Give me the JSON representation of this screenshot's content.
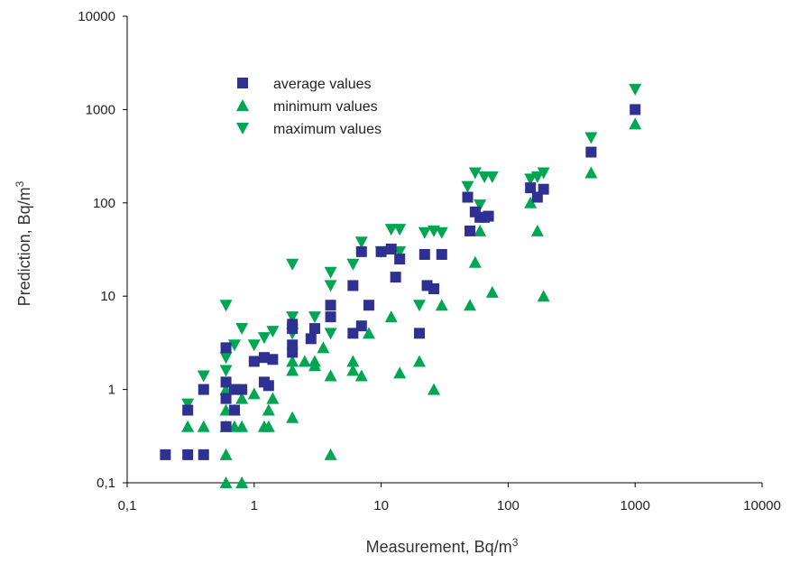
{
  "chart_data": {
    "type": "scatter",
    "title": "",
    "xlabel": "Measurement, Bq/m",
    "xlabel_sup": "3",
    "ylabel": "Prediction, Bq/m",
    "ylabel_sup": "3",
    "x_scale": "log",
    "y_scale": "log",
    "xlim": [
      0.1,
      10000
    ],
    "ylim": [
      0.1,
      10000
    ],
    "x_ticks": [
      "0,1",
      "1",
      "10",
      "100",
      "1000",
      "10000"
    ],
    "y_ticks": [
      "0,1",
      "1",
      "10",
      "100",
      "1000",
      "10000"
    ],
    "grid": false,
    "legend_position": "top-left",
    "series": [
      {
        "name": "average values",
        "marker": "square",
        "color": "#2e3192",
        "points": [
          [
            0.2,
            0.2
          ],
          [
            0.3,
            0.2
          ],
          [
            0.4,
            0.2
          ],
          [
            0.3,
            0.6
          ],
          [
            0.4,
            1.0
          ],
          [
            0.6,
            0.4
          ],
          [
            0.6,
            0.8
          ],
          [
            0.6,
            1.2
          ],
          [
            0.6,
            2.8
          ],
          [
            0.7,
            0.6
          ],
          [
            0.7,
            1.0
          ],
          [
            0.8,
            1.0
          ],
          [
            1.0,
            2.0
          ],
          [
            1.2,
            2.2
          ],
          [
            1.2,
            1.2
          ],
          [
            1.3,
            1.1
          ],
          [
            1.4,
            2.1
          ],
          [
            2.0,
            2.5
          ],
          [
            2.0,
            3.0
          ],
          [
            2.0,
            4.5
          ],
          [
            2.0,
            5.0
          ],
          [
            2.8,
            3.5
          ],
          [
            3.0,
            4.5
          ],
          [
            4.0,
            6.0
          ],
          [
            4.0,
            8.0
          ],
          [
            6.0,
            4.0
          ],
          [
            6.0,
            13.0
          ],
          [
            7.0,
            4.8
          ],
          [
            7.0,
            30.0
          ],
          [
            8.0,
            8.0
          ],
          [
            10.0,
            30.0
          ],
          [
            12.0,
            32.0
          ],
          [
            13.0,
            16.0
          ],
          [
            14.0,
            25.0
          ],
          [
            20.0,
            4.0
          ],
          [
            22.0,
            28.0
          ],
          [
            23.0,
            13.0
          ],
          [
            26.0,
            12.0
          ],
          [
            30.0,
            28.0
          ],
          [
            48.0,
            115.0
          ],
          [
            50.0,
            50.0
          ],
          [
            55.0,
            80.0
          ],
          [
            60.0,
            70.0
          ],
          [
            65.0,
            70.0
          ],
          [
            70.0,
            72.0
          ],
          [
            150.0,
            145.0
          ],
          [
            170.0,
            115.0
          ],
          [
            190.0,
            140.0
          ],
          [
            450.0,
            350.0
          ],
          [
            1000.0,
            1000.0
          ]
        ]
      },
      {
        "name": "minimum values",
        "marker": "triangle-up",
        "color": "#00a651",
        "points": [
          [
            0.3,
            0.4
          ],
          [
            0.4,
            0.4
          ],
          [
            0.6,
            0.1
          ],
          [
            0.6,
            0.2
          ],
          [
            0.6,
            0.4
          ],
          [
            0.6,
            0.6
          ],
          [
            0.6,
            1.0
          ],
          [
            0.7,
            0.4
          ],
          [
            0.7,
            0.6
          ],
          [
            0.8,
            0.4
          ],
          [
            0.8,
            0.1
          ],
          [
            0.8,
            0.8
          ],
          [
            1.0,
            0.9
          ],
          [
            1.2,
            0.4
          ],
          [
            1.3,
            0.4
          ],
          [
            1.3,
            0.6
          ],
          [
            1.4,
            0.8
          ],
          [
            2.0,
            0.5
          ],
          [
            2.0,
            1.6
          ],
          [
            2.0,
            2.0
          ],
          [
            2.5,
            2.0
          ],
          [
            3.0,
            1.8
          ],
          [
            3.0,
            2.0
          ],
          [
            3.5,
            2.8
          ],
          [
            4.0,
            1.4
          ],
          [
            4.0,
            0.2
          ],
          [
            6.0,
            1.6
          ],
          [
            6.0,
            2.0
          ],
          [
            7.0,
            1.4
          ],
          [
            8.0,
            4.0
          ],
          [
            12.0,
            6.0
          ],
          [
            14.0,
            1.5
          ],
          [
            20.0,
            2.0
          ],
          [
            26.0,
            1.0
          ],
          [
            30.0,
            8.0
          ],
          [
            50.0,
            8.0
          ],
          [
            55.0,
            23.0
          ],
          [
            60.0,
            50.0
          ],
          [
            75.0,
            11.0
          ],
          [
            150.0,
            100.0
          ],
          [
            170.0,
            50.0
          ],
          [
            190.0,
            10.0
          ],
          [
            450.0,
            210.0
          ],
          [
            1000.0,
            700.0
          ]
        ]
      },
      {
        "name": "maximum values",
        "marker": "triangle-down",
        "color": "#00a651",
        "points": [
          [
            0.3,
            0.7
          ],
          [
            0.4,
            1.4
          ],
          [
            0.6,
            1.6
          ],
          [
            0.6,
            2.2
          ],
          [
            0.6,
            8.0
          ],
          [
            0.7,
            3.0
          ],
          [
            0.8,
            4.5
          ],
          [
            1.0,
            3.0
          ],
          [
            1.2,
            3.6
          ],
          [
            1.4,
            4.2
          ],
          [
            2.0,
            22.0
          ],
          [
            2.0,
            4.0
          ],
          [
            2.0,
            6.0
          ],
          [
            3.0,
            6.0
          ],
          [
            4.0,
            13.0
          ],
          [
            4.0,
            18.0
          ],
          [
            4.0,
            4.0
          ],
          [
            6.0,
            22.0
          ],
          [
            7.0,
            38.0
          ],
          [
            10.0,
            30.0
          ],
          [
            12.0,
            52.0
          ],
          [
            14.0,
            52.0
          ],
          [
            14.0,
            30.0
          ],
          [
            20.0,
            8.0
          ],
          [
            22.0,
            48.0
          ],
          [
            26.0,
            50.0
          ],
          [
            30.0,
            48.0
          ],
          [
            48.0,
            150.0
          ],
          [
            55.0,
            210.0
          ],
          [
            60.0,
            95.0
          ],
          [
            65.0,
            190.0
          ],
          [
            75.0,
            190.0
          ],
          [
            150.0,
            180.0
          ],
          [
            170.0,
            190.0
          ],
          [
            190.0,
            210.0
          ],
          [
            450.0,
            500.0
          ],
          [
            1000.0,
            1650.0
          ]
        ]
      }
    ]
  }
}
